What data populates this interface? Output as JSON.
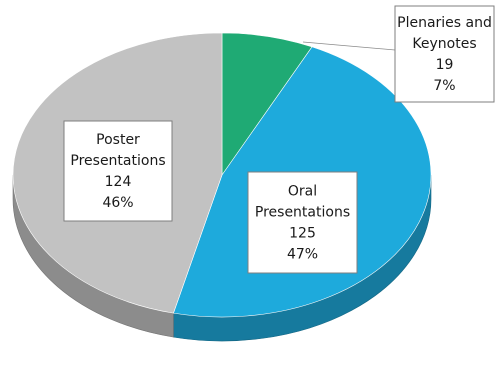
{
  "chart_data": {
    "type": "pie",
    "three_d": true,
    "title": "",
    "legend": "none",
    "slices": [
      {
        "label_lines": [
          "Plenaries and",
          "Keynotes"
        ],
        "value": 19,
        "value_text": "19",
        "percent_text": "7%",
        "color": "#1faa74"
      },
      {
        "label_lines": [
          "Oral",
          "Presentations"
        ],
        "value": 125,
        "value_text": "125",
        "percent_text": "47%",
        "color": "#1eaadc"
      },
      {
        "label_lines": [
          "Poster",
          "Presentations"
        ],
        "value": 124,
        "value_text": "124",
        "percent_text": "46%",
        "color": "#c2c2c2"
      }
    ]
  }
}
